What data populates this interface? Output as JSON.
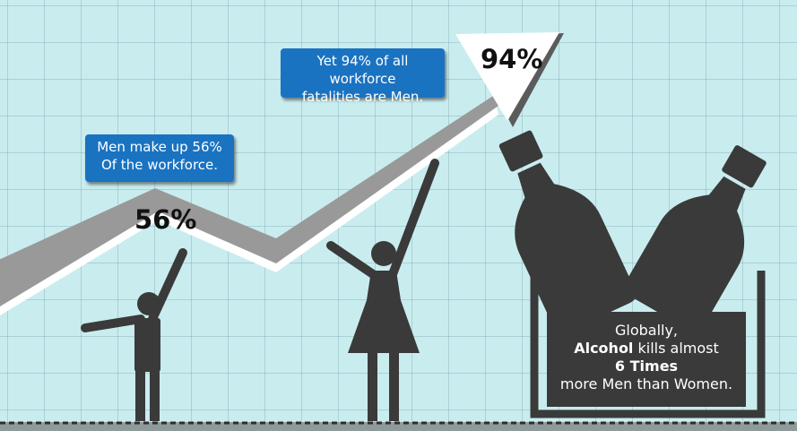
{
  "colors": {
    "background": "#c9ecef",
    "arrow_fill": "#999999",
    "arrow_outline": "#ffffff",
    "callout_bg": "#1a73c1",
    "silhouette": "#3a3a3a"
  },
  "callouts": {
    "workforce_share": {
      "line1": "Men make up 56%",
      "line2": "Of the workforce."
    },
    "fatalities": {
      "line1": "Yet 94% of all workforce",
      "line2": "fatalities are Men."
    }
  },
  "markers": {
    "men_workforce_pct": "56%",
    "men_fatalities_pct": "94%"
  },
  "alcohol_caption": {
    "line1": "Globally,",
    "line2_bold": "Alcohol",
    "line2_rest": "kills almost",
    "line3_bold": "6 Times",
    "line4": "more Men than Women."
  },
  "icons": [
    "trend-arrow",
    "man-figure",
    "woman-figure",
    "bottle-icon",
    "ice-bucket-icon"
  ]
}
